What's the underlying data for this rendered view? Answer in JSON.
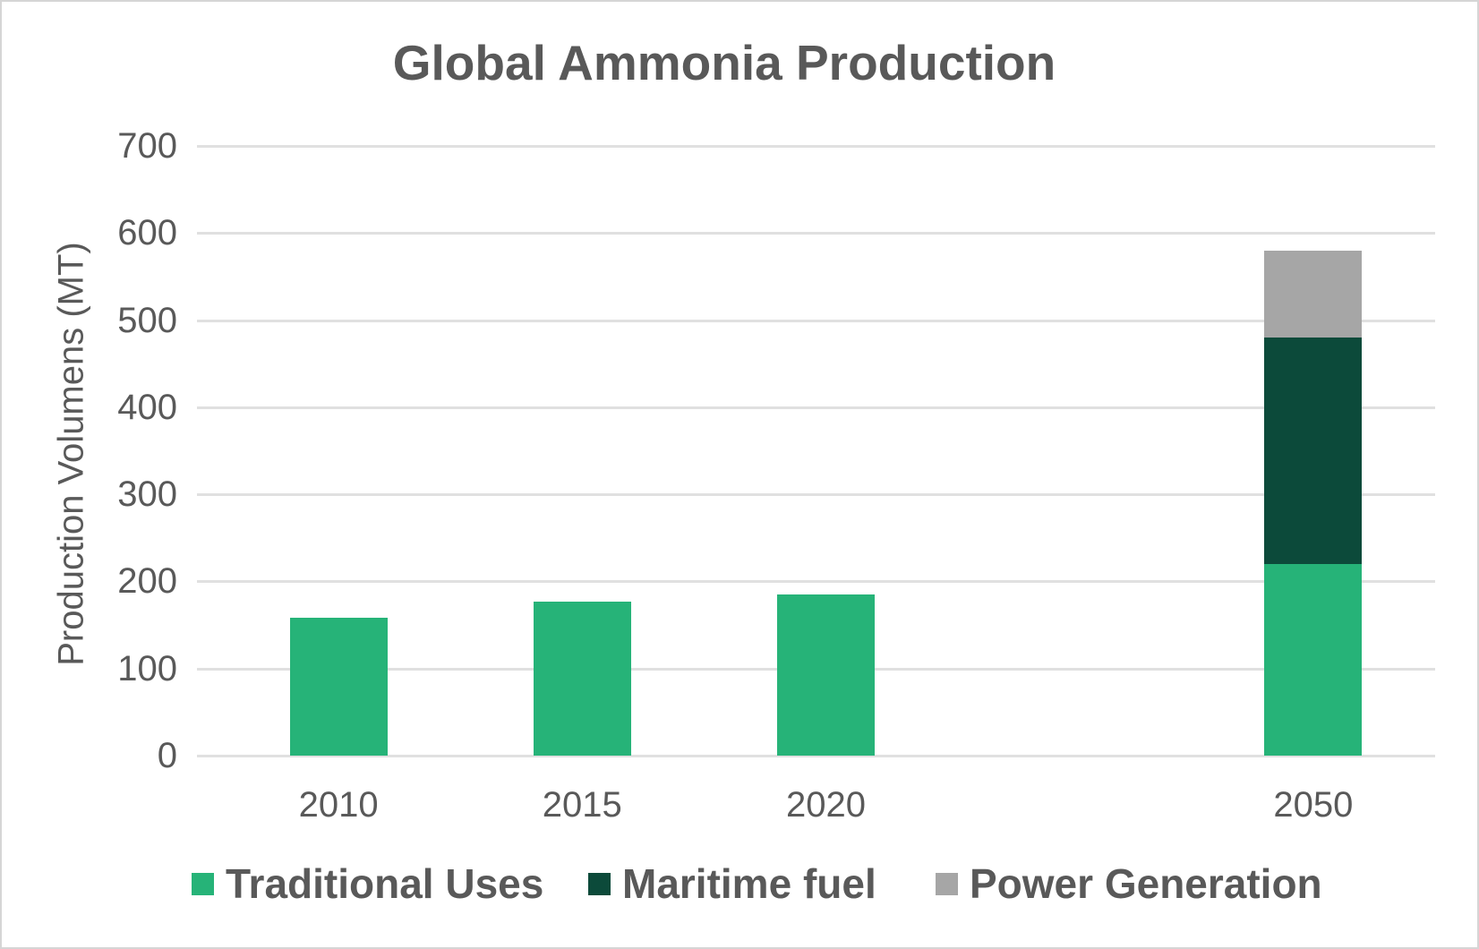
{
  "chart_data": {
    "type": "bar",
    "stacked": true,
    "title": "Global Ammonia Production",
    "xlabel": "",
    "ylabel": "Production Volumens (MT)",
    "categories": [
      "2010",
      "2015",
      "2020",
      "2050"
    ],
    "series": [
      {
        "name": "Traditional Uses",
        "color": "#26b378",
        "values": [
          158,
          177,
          185,
          220
        ]
      },
      {
        "name": "Maritime fuel",
        "color": "#0c4a3a",
        "values": [
          0,
          0,
          0,
          260
        ]
      },
      {
        "name": "Power Generation",
        "color": "#a6a6a6",
        "values": [
          0,
          0,
          0,
          100
        ]
      }
    ],
    "stack_totals": [
      158,
      177,
      185,
      580
    ],
    "ylim": [
      0,
      700
    ],
    "yticks": [
      0,
      100,
      200,
      300,
      400,
      500,
      600,
      700
    ],
    "grid": true,
    "legend_position": "bottom",
    "slot_indices": [
      0,
      1,
      2,
      4
    ],
    "total_slots": 5
  },
  "colors": {
    "text": "#595959",
    "gridline": "#e0e0e0",
    "background": "#ffffff",
    "border": "#d5d5d5"
  }
}
